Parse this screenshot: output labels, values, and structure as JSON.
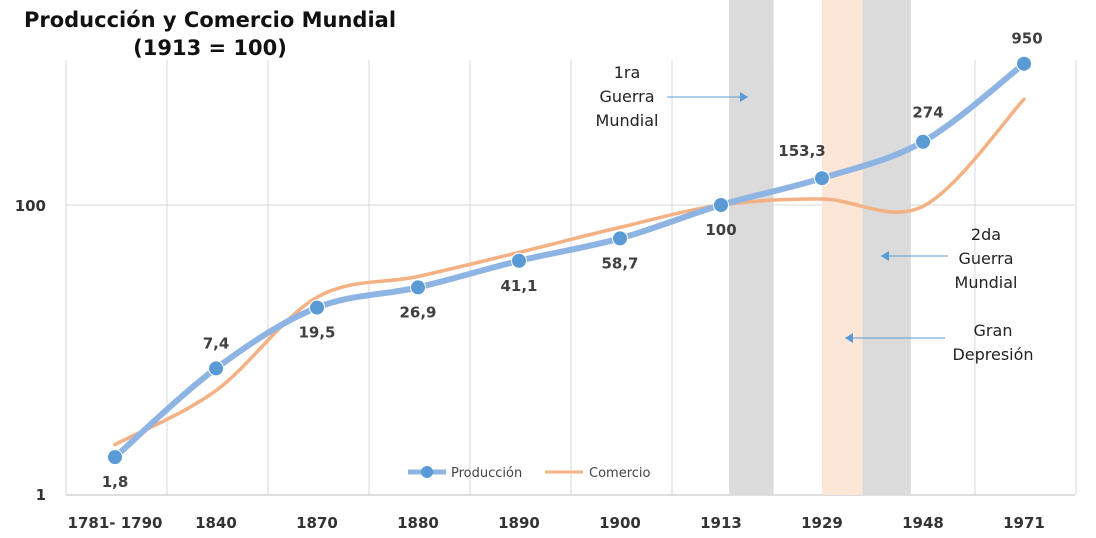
{
  "chart_data": {
    "type": "line",
    "title": "Producción y Comercio Mundial",
    "subtitle": "(1913 = 100)",
    "categories": [
      "1781- 1790",
      "1840",
      "1870",
      "1880",
      "1890",
      "1900",
      "1913",
      "1929",
      "1948",
      "1971"
    ],
    "yscale": "log",
    "yticks": [
      "1",
      "100"
    ],
    "ylim": [
      1,
      1500
    ],
    "series": [
      {
        "name": "Producción",
        "values": [
          1.8,
          7.4,
          19.5,
          26.9,
          41.1,
          58.7,
          100,
          153.3,
          274,
          950
        ],
        "labels": [
          "1,8",
          "7,4",
          "19,5",
          "26,9",
          "41,1",
          "58,7",
          "100",
          "153,3",
          "274",
          "950"
        ],
        "color": "#8db4e2",
        "marker_color": "#5b9bd5"
      },
      {
        "name": "Comercio",
        "values": [
          2.2,
          5.2,
          23,
          32,
          47,
          70,
          100,
          110,
          98,
          540
        ],
        "color": "#f4b183"
      }
    ],
    "bands": [
      {
        "label": "1ra Guerra Mundial",
        "from": 6.08,
        "to": 6.52,
        "color": "#d9d9d9"
      },
      {
        "label": "Gran Depresión",
        "from": 7.0,
        "to": 7.4,
        "color": "#fbe5d6"
      },
      {
        "label": "2da Guerra Mundial",
        "from": 7.4,
        "to": 7.88,
        "color": "#d9d9d9"
      }
    ],
    "annotations": [
      {
        "lines": [
          "1ra",
          "Guerra",
          "Mundial"
        ]
      },
      {
        "lines": [
          "2da",
          "Guerra",
          "Mundial"
        ]
      },
      {
        "lines": [
          "Gran",
          "Depresión"
        ]
      }
    ],
    "legend_position": "bottom",
    "grid": "vertical"
  }
}
